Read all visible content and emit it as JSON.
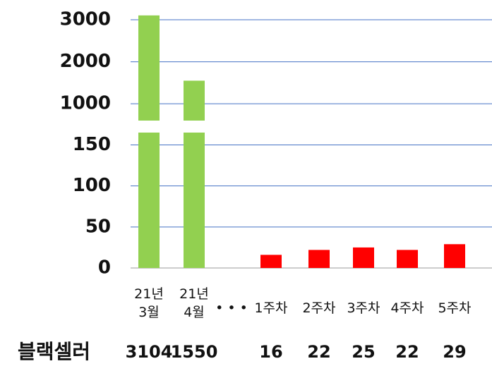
{
  "chart_data": {
    "type": "bar",
    "broken_axis": true,
    "categories": [
      "21년\n3월",
      "21년\n4월",
      "• • •",
      "1주차",
      "2주차",
      "3주차",
      "4주차",
      "5주차"
    ],
    "series": [
      {
        "name": "블랙셀러",
        "colors": [
          "#92d050",
          "#92d050",
          null,
          "#ff0000",
          "#ff0000",
          "#ff0000",
          "#ff0000",
          "#ff0000"
        ],
        "values": [
          3104,
          1550,
          null,
          16,
          22,
          25,
          22,
          29
        ]
      }
    ],
    "ylim": [
      0,
      165
    ],
    "yticks": [
      0,
      50,
      100,
      150
    ],
    "y2lim": [
      600,
      3370
    ],
    "y2ticks": [
      1000,
      2000,
      3000
    ],
    "grid": true,
    "grid_color": "#4472c4"
  }
}
